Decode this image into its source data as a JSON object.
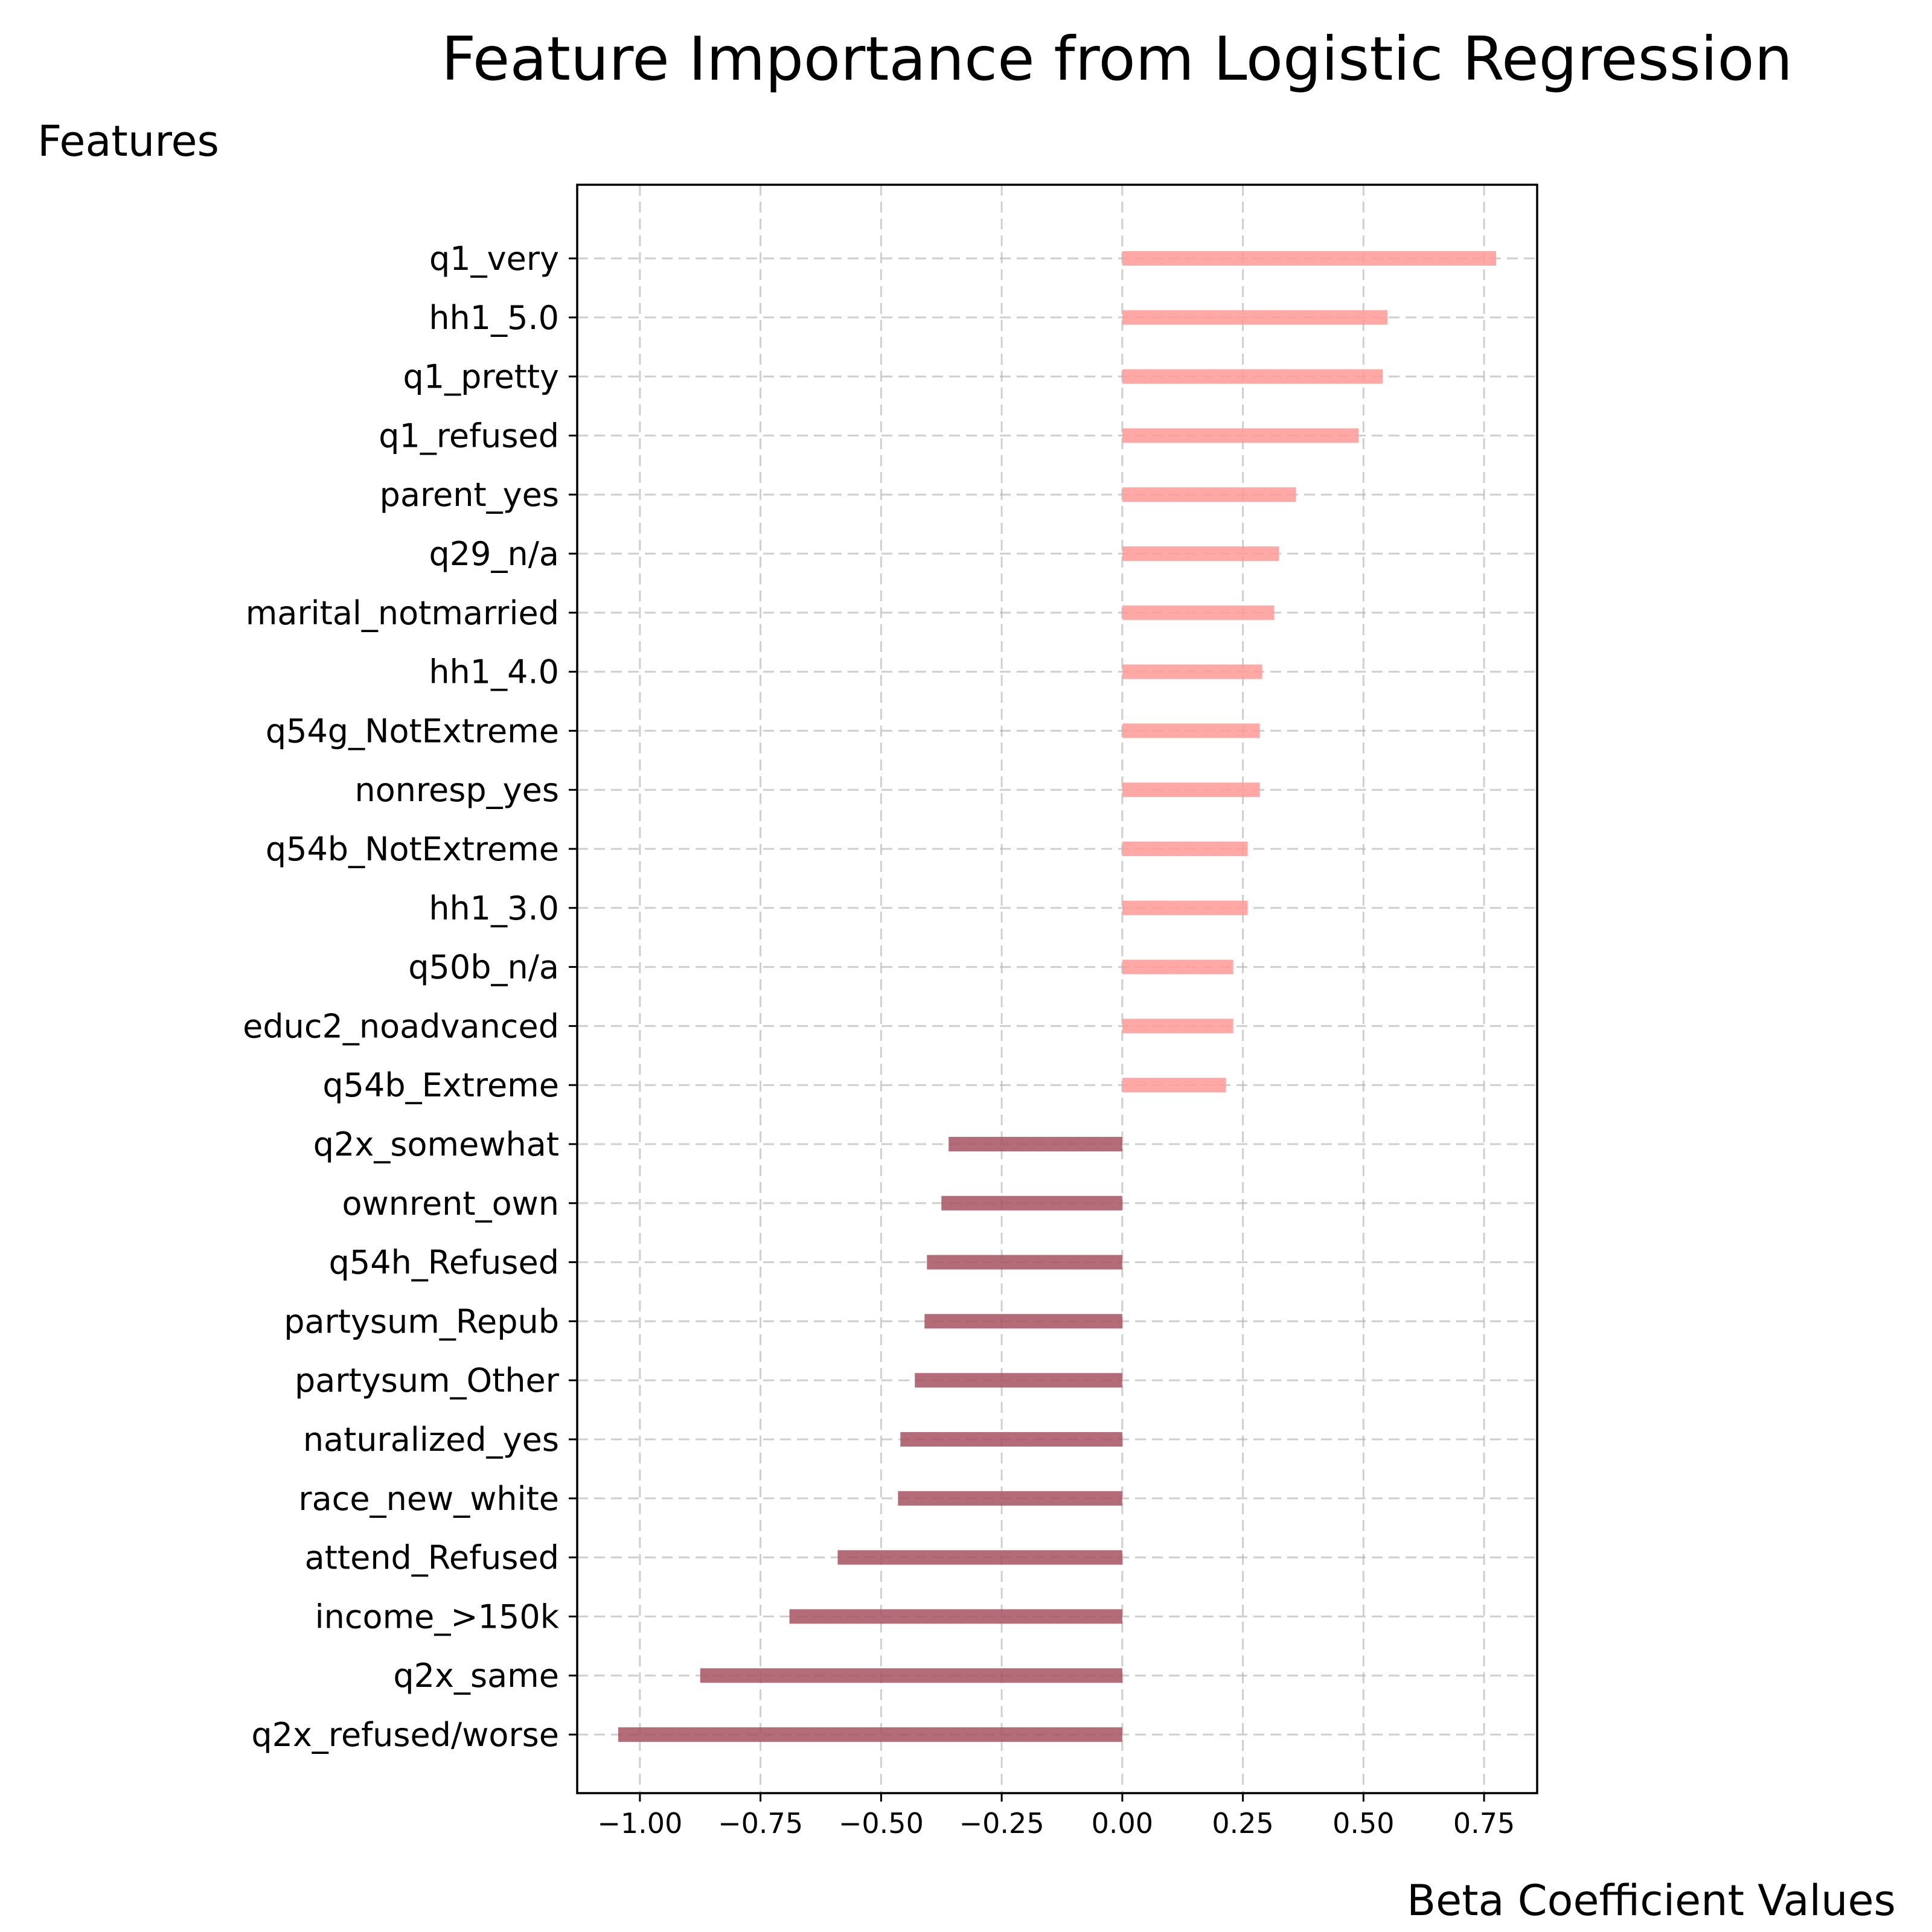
{
  "chart_data": {
    "type": "bar",
    "orientation": "horizontal",
    "title": "Feature Importance from Logistic Regression",
    "ylabel": "Features",
    "xlabel": "Beta Coefficient Values",
    "xlim": [
      -1.13,
      0.86
    ],
    "xticks": [
      -1.0,
      -0.75,
      -0.5,
      -0.25,
      0.0,
      0.25,
      0.5,
      0.75
    ],
    "xtick_labels": [
      "−1.00",
      "−0.75",
      "−0.50",
      "−0.25",
      "0.00",
      "0.25",
      "0.50",
      "0.75"
    ],
    "grid": true,
    "colors": {
      "positive": "#ff9a98",
      "negative": "#a85262"
    },
    "categories": [
      "q1_very",
      "hh1_5.0",
      "q1_pretty",
      "q1_refused",
      "parent_yes",
      "q29_n/a",
      "marital_notmarried",
      "hh1_4.0",
      "q54g_NotExtreme",
      "nonresp_yes",
      "q54b_NotExtreme",
      "hh1_3.0",
      "q50b_n/a",
      "educ2_noadvanced",
      "q54b_Extreme",
      "q2x_somewhat",
      "ownrent_own",
      "q54h_Refused",
      "partysum_Repub",
      "partysum_Other",
      "naturalized_yes",
      "race_new_white",
      "attend_Refused",
      "income_>150k",
      "q2x_same",
      "q2x_refused/worse"
    ],
    "values": [
      0.775,
      0.55,
      0.54,
      0.49,
      0.36,
      0.325,
      0.315,
      0.29,
      0.285,
      0.285,
      0.26,
      0.26,
      0.23,
      0.23,
      0.215,
      -0.36,
      -0.375,
      -0.405,
      -0.41,
      -0.43,
      -0.46,
      -0.465,
      -0.59,
      -0.69,
      -0.875,
      -1.045
    ]
  }
}
